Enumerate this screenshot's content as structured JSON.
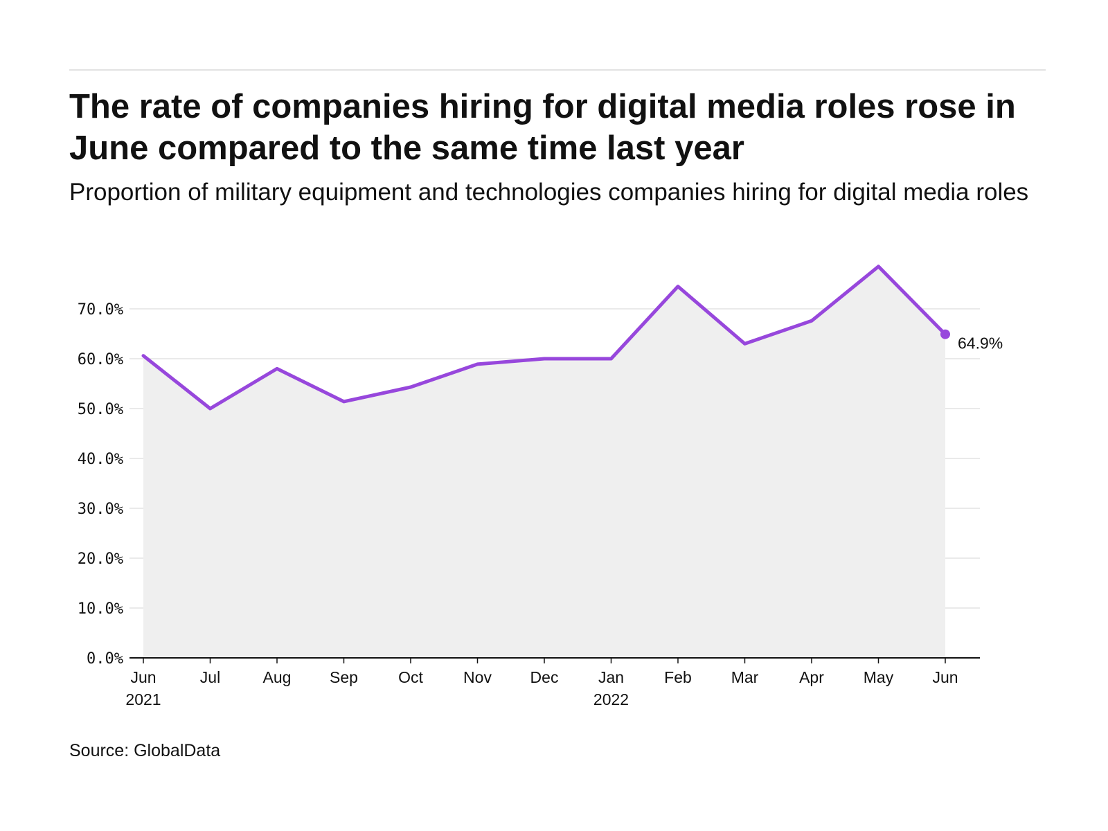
{
  "header": {
    "title": "The rate of companies hiring for digital media roles rose in June compared to the same time last year",
    "subtitle": "Proportion of military equipment and technologies companies hiring for digital media roles"
  },
  "footer": {
    "source": "Source: GlobalData"
  },
  "colors": {
    "line": "#9747dc",
    "area": "#efefef",
    "grid": "#e4e4e4",
    "axis": "#111111"
  },
  "chart_data": {
    "type": "area",
    "title": "The rate of companies hiring for digital media roles rose in June compared to the same time last year",
    "subtitle": "Proportion of military equipment and technologies companies hiring for digital media roles",
    "xlabel": "",
    "ylabel": "",
    "categories": [
      "Jun 2021",
      "Jul",
      "Aug",
      "Sep",
      "Oct",
      "Nov",
      "Dec",
      "Jan 2022",
      "Feb",
      "Mar",
      "Apr",
      "May",
      "Jun"
    ],
    "x_tick_labels": [
      [
        "Jun",
        "2021"
      ],
      [
        "Jul"
      ],
      [
        "Aug"
      ],
      [
        "Sep"
      ],
      [
        "Oct"
      ],
      [
        "Nov"
      ],
      [
        "Dec"
      ],
      [
        "Jan",
        "2022"
      ],
      [
        "Feb"
      ],
      [
        "Mar"
      ],
      [
        "Apr"
      ],
      [
        "May"
      ],
      [
        "Jun"
      ]
    ],
    "series": [
      {
        "values": [
          60.6,
          50.0,
          58.0,
          51.4,
          54.3,
          58.9,
          60.0,
          60.0,
          74.5,
          63.0,
          67.6,
          78.5,
          64.9
        ]
      }
    ],
    "end_label": "64.9%",
    "ylim": [
      0,
      80
    ],
    "y_ticks": [
      0,
      10,
      20,
      30,
      40,
      50,
      60,
      70
    ],
    "y_tick_labels": [
      "0.0%",
      "10.0%",
      "20.0%",
      "30.0%",
      "40.0%",
      "50.0%",
      "60.0%",
      "70.0%"
    ],
    "grid": true,
    "legend": "none"
  }
}
